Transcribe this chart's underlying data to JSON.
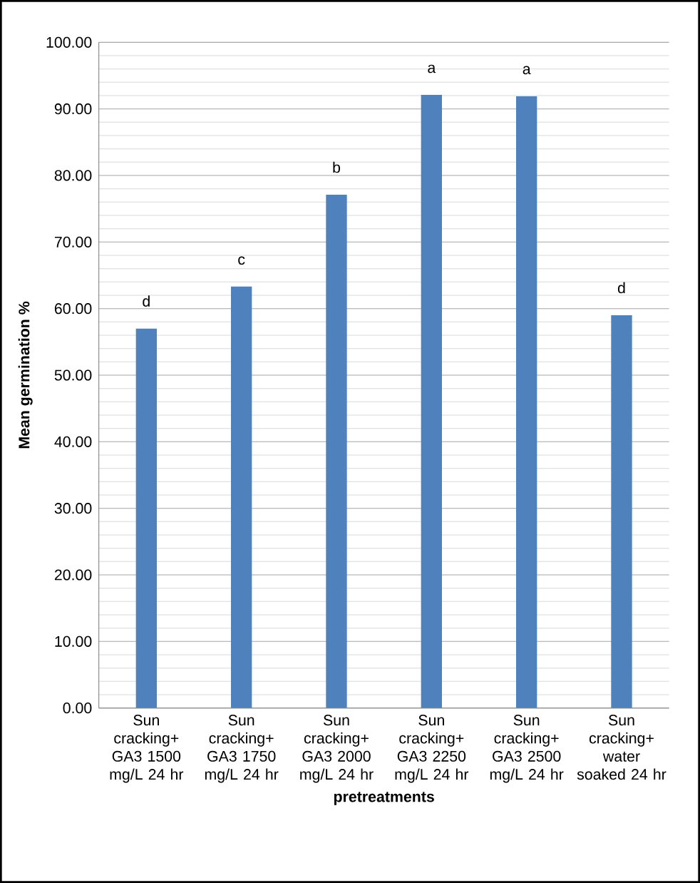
{
  "chart_data": {
    "type": "bar",
    "xlabel": "pretreatments",
    "ylabel": "Mean germination %",
    "categories": [
      "Sun cracking+ GA3 1500 mg/L 24 hr",
      "Sun cracking+ GA3 1750 mg/L 24 hr",
      "Sun cracking+ GA3 2000 mg/L 24 hr",
      "Sun cracking+ GA3 2250 mg/L 24 hr",
      "Sun cracking+ GA3 2500 mg/L 24 hr",
      "Sun cracking+ water soaked 24 hr"
    ],
    "values": [
      57.0,
      63.3,
      77.1,
      92.1,
      91.9,
      59.0
    ],
    "color": "#4f81bd",
    "ylim": [
      0,
      100
    ],
    "yticks": [
      {
        "value": 0,
        "label": "0.00"
      },
      {
        "value": 10,
        "label": "10.00"
      },
      {
        "value": 20,
        "label": "20.00"
      },
      {
        "value": 30,
        "label": "30.00"
      },
      {
        "value": 40,
        "label": "40.00"
      },
      {
        "value": 50,
        "label": "50.00"
      },
      {
        "value": 60,
        "label": "60.00"
      },
      {
        "value": 70,
        "label": "70.00"
      },
      {
        "value": 80,
        "label": "80.00"
      },
      {
        "value": 90,
        "label": "90.00"
      },
      {
        "value": 100,
        "label": "100.00"
      }
    ],
    "grid": true,
    "annotations": [
      {
        "text": "d",
        "x": "Sun cracking+ GA3 1500 mg/L 24 hr",
        "y": 57.0
      },
      {
        "text": "c",
        "x": "Sun cracking+ GA3 1750 mg/L 24 hr",
        "y": 63.3
      },
      {
        "text": "b",
        "x": "Sun cracking+ GA3 2000 mg/L 24 hr",
        "y": 77.1
      },
      {
        "text": "a",
        "x": "Sun cracking+ GA3 2250 mg/L 24 hr",
        "y": 92.1
      },
      {
        "text": "a",
        "x": "Sun cracking+ GA3 2500 mg/L 24 hr",
        "y": 91.9
      },
      {
        "text": "d",
        "x": "Sun cracking+ water soaked 24 hr",
        "y": 59.0
      }
    ]
  }
}
